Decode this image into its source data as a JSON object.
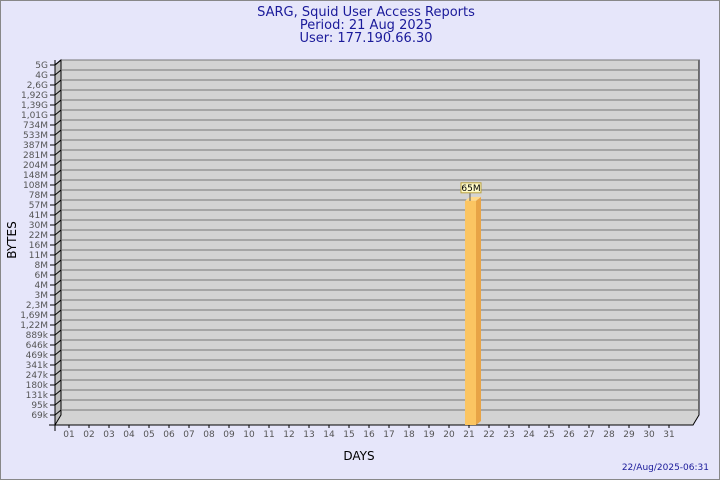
{
  "chart_data": {
    "type": "bar",
    "title": "SARG, Squid User Access Reports",
    "subtitle": [
      "Period: 21 Aug 2025",
      "User: 177.190.66.30"
    ],
    "xlabel": "DAYS",
    "ylabel": "BYTES",
    "y_scale": "log",
    "y_ticks": [
      "5G",
      "4G",
      "2,6G",
      "1,92G",
      "1,39G",
      "1,01G",
      "734M",
      "533M",
      "387M",
      "281M",
      "204M",
      "148M",
      "108M",
      "78M",
      "57M",
      "41M",
      "30M",
      "22M",
      "16M",
      "11M",
      "8M",
      "6M",
      "4M",
      "3M",
      "2,3M",
      "1,69M",
      "1,22M",
      "889k",
      "646k",
      "469k",
      "341k",
      "247k",
      "180k",
      "131k",
      "95k",
      "69k"
    ],
    "categories": [
      "01",
      "02",
      "03",
      "04",
      "05",
      "06",
      "07",
      "08",
      "09",
      "10",
      "11",
      "12",
      "13",
      "14",
      "15",
      "16",
      "17",
      "18",
      "19",
      "20",
      "21",
      "22",
      "23",
      "24",
      "25",
      "26",
      "27",
      "28",
      "29",
      "30",
      "31"
    ],
    "bars": [
      {
        "day": "21",
        "value": 65000000,
        "label": "65M"
      }
    ],
    "grid": true,
    "colors": {
      "bar": "#fbc562",
      "bar_side": "#e8a446",
      "panel": "#d3d3d3",
      "background": "#e6e6fa",
      "title": "#1a1a9a"
    }
  },
  "footer": {
    "timestamp": "22/Aug/2025-06:31"
  }
}
